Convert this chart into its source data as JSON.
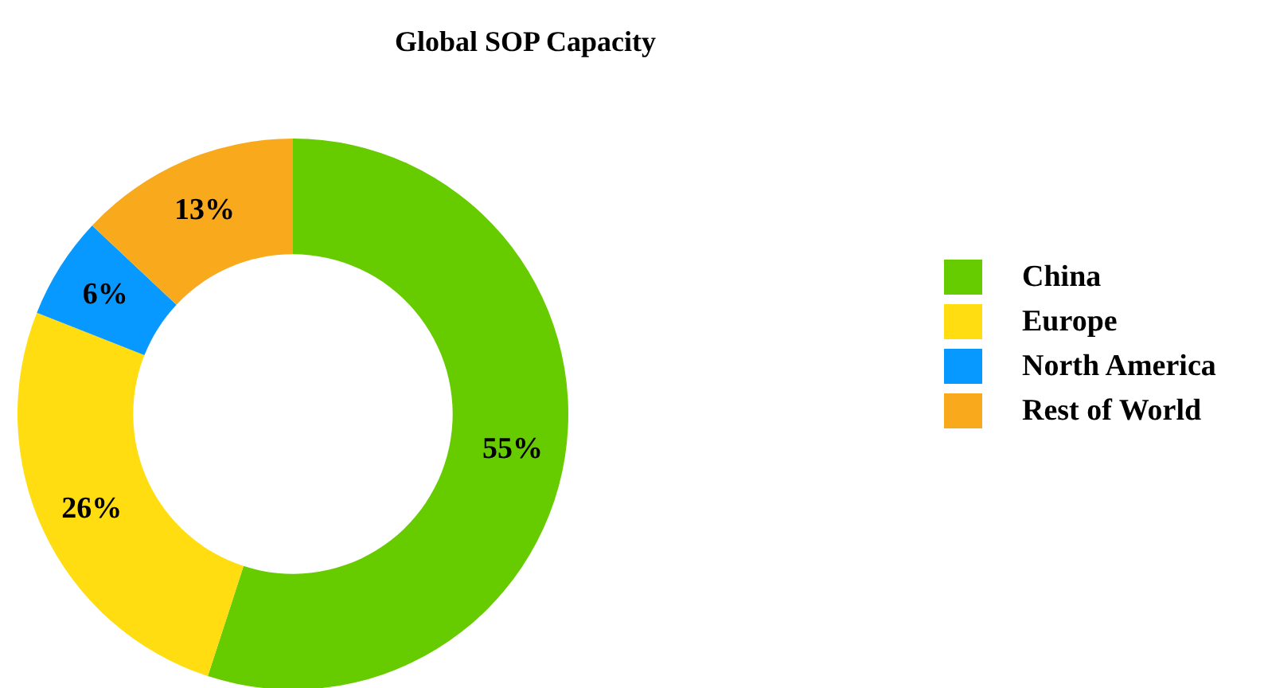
{
  "chart_data": {
    "type": "donut",
    "title": "Global SOP Capacity",
    "categories": [
      "China",
      "Europe",
      "North America",
      "Rest of World"
    ],
    "values": [
      55,
      26,
      6,
      13
    ],
    "colors": [
      "#66cc00",
      "#ffdd11",
      "#0799ff",
      "#f9aa1c"
    ],
    "value_labels": [
      "55%",
      "26%",
      "6%",
      "13%"
    ],
    "legend": "right"
  }
}
